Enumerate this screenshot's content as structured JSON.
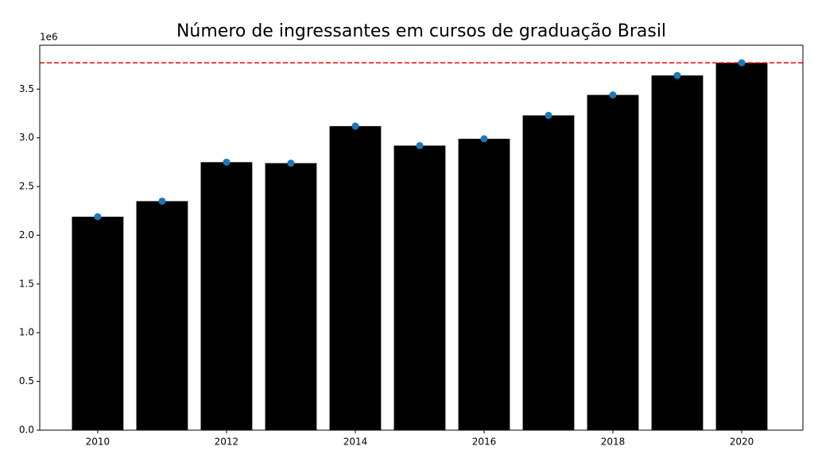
{
  "chart_data": {
    "type": "bar",
    "title": "Número de ingressantes em cursos de graduação Brasil",
    "y_offset_label": "1e6",
    "x": [
      2010,
      2011,
      2012,
      2013,
      2014,
      2015,
      2016,
      2017,
      2018,
      2019,
      2020
    ],
    "values": [
      2.19,
      2.35,
      2.75,
      2.74,
      3.12,
      2.92,
      2.99,
      3.23,
      3.44,
      3.64,
      3.77
    ],
    "bar_width": 0.8,
    "color": "#000000",
    "marker_color": "#1f77b4",
    "hline": 3.77,
    "hline_color": "#ff0000",
    "xlim": [
      2009.1,
      2020.95
    ],
    "xticks": [
      2010,
      2012,
      2014,
      2016,
      2018,
      2020
    ],
    "ylim": [
      0,
      3.95
    ],
    "yticks": [
      {
        "value": 0,
        "label": "0.0"
      },
      0.5,
      {
        "value": 1,
        "label": "1.0"
      },
      1.5,
      {
        "value": 2,
        "label": "2.0"
      },
      2.5,
      {
        "value": 3,
        "label": "3.0"
      },
      3.5
    ]
  }
}
